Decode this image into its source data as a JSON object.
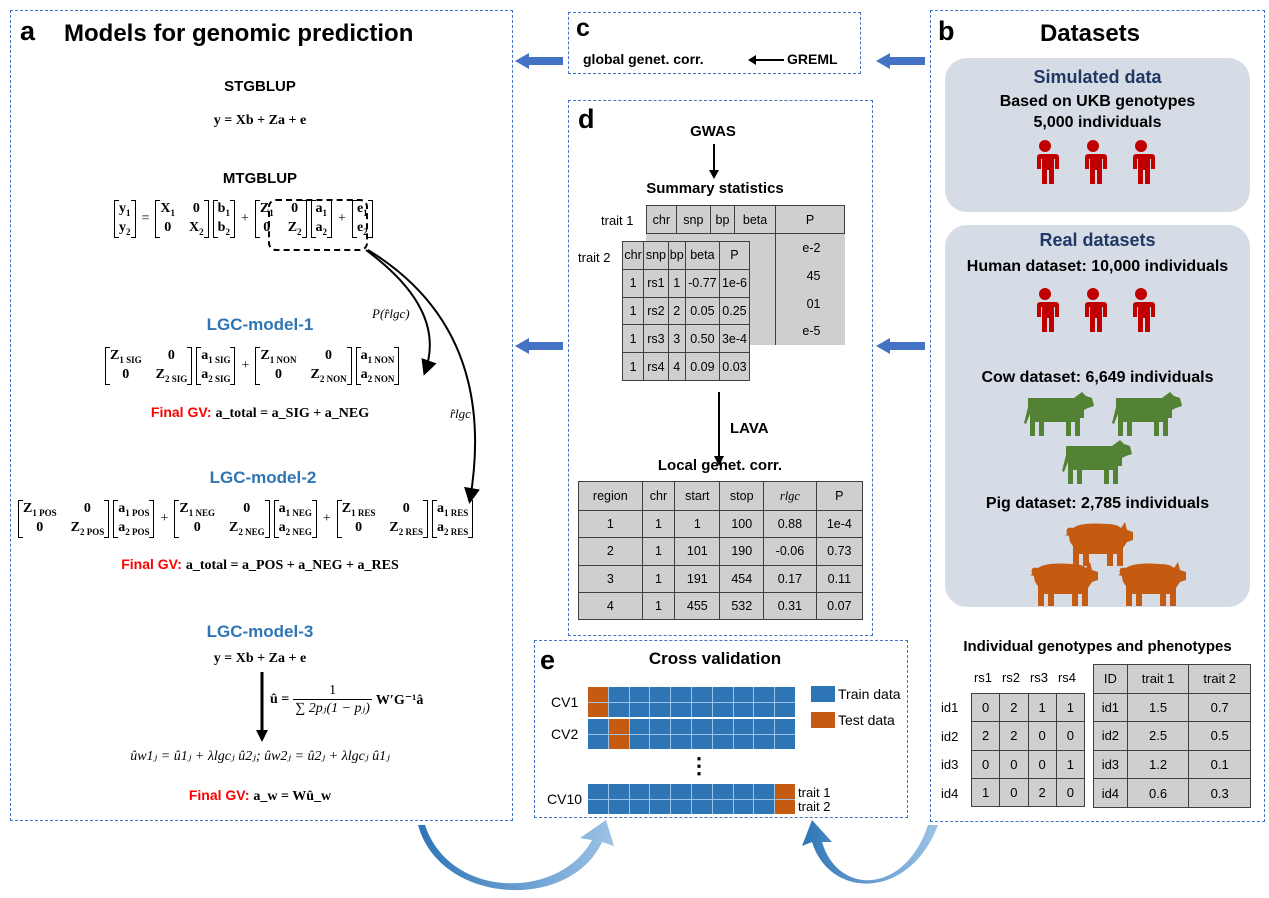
{
  "colors": {
    "border": "#4472c4",
    "model_title": "#2e75b6",
    "final_gv": "#ff0000",
    "human": "#c00000",
    "cow": "#548235",
    "pig": "#c55a11",
    "train": "#2e75b6",
    "test": "#c55a11",
    "box": "#d6dce5",
    "table": "#d0cece"
  },
  "panel_a": {
    "letter": "a",
    "title": "Models for genomic prediction",
    "stgblup": {
      "title": "STGBLUP",
      "eq": "y = Xb + Za + e"
    },
    "mtgblup": {
      "title": "MTGBLUP",
      "eq": [
        {
          "m": [
            [
              "y|1"
            ],
            [
              "y|2"
            ]
          ]
        },
        {
          "t": "="
        },
        {
          "m": [
            [
              "X|1",
              "0"
            ],
            [
              "0",
              "X|2"
            ]
          ]
        },
        {
          "m": [
            [
              "b|1"
            ],
            [
              "b|2"
            ]
          ]
        },
        {
          "t": "+"
        },
        {
          "m": [
            [
              "Z|1",
              "0"
            ],
            [
              "0",
              "Z|2"
            ]
          ]
        },
        {
          "m": [
            [
              "a|1"
            ],
            [
              "a|2"
            ]
          ]
        },
        {
          "t": "+"
        },
        {
          "m": [
            [
              "e|1"
            ],
            [
              "e|2"
            ]
          ]
        }
      ]
    },
    "arrow_label_1": "P(r̂lgc)",
    "arrow_label_2": "r̂lgc",
    "model1": {
      "title": "LGC-model-1",
      "eq": [
        {
          "m": [
            [
              "Z|1SIG",
              "0"
            ],
            [
              "0",
              "Z|2SIG"
            ]
          ]
        },
        {
          "m": [
            [
              "a|1SIG"
            ],
            [
              "a|2SIG"
            ]
          ]
        },
        {
          "t": "+"
        },
        {
          "m": [
            [
              "Z|1NON",
              "0"
            ],
            [
              "0",
              "Z|2NON"
            ]
          ]
        },
        {
          "m": [
            [
              "a|1NON"
            ],
            [
              "a|2NON"
            ]
          ]
        }
      ],
      "final_label": "Final GV:",
      "final_eq": "a_total = a_SIG + a_NEG"
    },
    "model2": {
      "title": "LGC-model-2",
      "eq": [
        {
          "m": [
            [
              "Z|1POS",
              "0"
            ],
            [
              "0",
              "Z|2POS"
            ]
          ]
        },
        {
          "m": [
            [
              "a|1POS"
            ],
            [
              "a|2POS"
            ]
          ]
        },
        {
          "t": "+"
        },
        {
          "m": [
            [
              "Z|1NEG",
              "0"
            ],
            [
              "0",
              "Z|2NEG"
            ]
          ]
        },
        {
          "m": [
            [
              "a|1NEG"
            ],
            [
              "a|2NEG"
            ]
          ]
        },
        {
          "t": "+"
        },
        {
          "m": [
            [
              "Z|1RES",
              "0"
            ],
            [
              "0",
              "Z|2RES"
            ]
          ]
        },
        {
          "m": [
            [
              "a|1RES"
            ],
            [
              "a|2RES"
            ]
          ]
        }
      ],
      "final_label": "Final GV:",
      "final_eq": "a_total = a_POS + a_NEG + a_RES"
    },
    "model3": {
      "title": "LGC-model-3",
      "eq": "y = Xb + Za + e",
      "u_lhs": "û =",
      "u_num": "1",
      "u_den": "∑ 2pⱼ(1 − pⱼ)",
      "u_rhs": "W′G⁻¹â",
      "w_eq": "ûw1ⱼ = û1ⱼ + λlgcⱼ û2ⱼ;  ûw2ⱼ = û2ⱼ + λlgcⱼ û1ⱼ",
      "final_label": "Final GV:",
      "final_eq": "a_w = Wû_w"
    }
  },
  "panel_c": {
    "letter": "c",
    "left": "global genet. corr.",
    "right": "GREML"
  },
  "panel_d": {
    "letter": "d",
    "gwas": "GWAS",
    "summary_title": "Summary statistics",
    "trait1_label": "trait 1",
    "trait2_label": "trait 2",
    "columns": [
      "chr",
      "snp",
      "bp",
      "beta",
      "P"
    ],
    "trait1_visible_P": [
      "e-2",
      "45",
      "01",
      "e-5"
    ],
    "trait2_rows": [
      [
        "1",
        "rs1",
        "1",
        "-0.77",
        "1e-6"
      ],
      [
        "1",
        "rs2",
        "2",
        "0.05",
        "0.25"
      ],
      [
        "1",
        "rs3",
        "3",
        "0.50",
        "3e-4"
      ],
      [
        "1",
        "rs4",
        "4",
        "0.09",
        "0.03"
      ]
    ],
    "lava": "LAVA",
    "local_title": "Local genet. corr.",
    "local_columns": [
      "region",
      "chr",
      "start",
      "stop",
      "rlgc",
      "P"
    ],
    "local_rows": [
      [
        "1",
        "1",
        "1",
        "100",
        "0.88",
        "1e-4"
      ],
      [
        "2",
        "1",
        "101",
        "190",
        "-0.06",
        "0.73"
      ],
      [
        "3",
        "1",
        "191",
        "454",
        "0.17",
        "0.11"
      ],
      [
        "4",
        "1",
        "455",
        "532",
        "0.31",
        "0.07"
      ]
    ]
  },
  "panel_e": {
    "letter": "e",
    "title": "Cross validation",
    "folds": [
      {
        "label": "CV1",
        "test_col": 1
      },
      {
        "label": "CV2",
        "test_col": 2
      },
      {
        "label": "CV10",
        "test_col": 10
      }
    ],
    "ellipsis": "⋮",
    "legend": [
      "Train data",
      "Test data"
    ],
    "trait_labels": [
      "trait 1",
      "trait 2"
    ]
  },
  "panel_b": {
    "letter": "b",
    "title": "Datasets",
    "simulated": {
      "title": "Simulated data",
      "line1": "Based on UKB genotypes",
      "line2": "5,000 individuals"
    },
    "real": {
      "title": "Real datasets",
      "human": "Human dataset: 10,000 individuals",
      "cow": "Cow dataset:  6,649 individuals",
      "pig": "Pig dataset:  2,785 individuals"
    },
    "geno_title": "Individual genotypes and phenotypes",
    "snp_cols": [
      "rs1",
      "rs2",
      "rs3",
      "rs4"
    ],
    "geno_rows": [
      {
        "id": "id1",
        "v": [
          "0",
          "2",
          "1",
          "1"
        ]
      },
      {
        "id": "id2",
        "v": [
          "2",
          "2",
          "0",
          "0"
        ]
      },
      {
        "id": "id3",
        "v": [
          "0",
          "0",
          "0",
          "1"
        ]
      },
      {
        "id": "id4",
        "v": [
          "1",
          "0",
          "2",
          "0"
        ]
      }
    ],
    "pheno_cols": [
      "ID",
      "trait 1",
      "trait 2"
    ],
    "pheno_rows": [
      [
        "id1",
        "1.5",
        "0.7"
      ],
      [
        "id2",
        "2.5",
        "0.5"
      ],
      [
        "id3",
        "1.2",
        "0.1"
      ],
      [
        "id4",
        "0.6",
        "0.3"
      ]
    ]
  }
}
